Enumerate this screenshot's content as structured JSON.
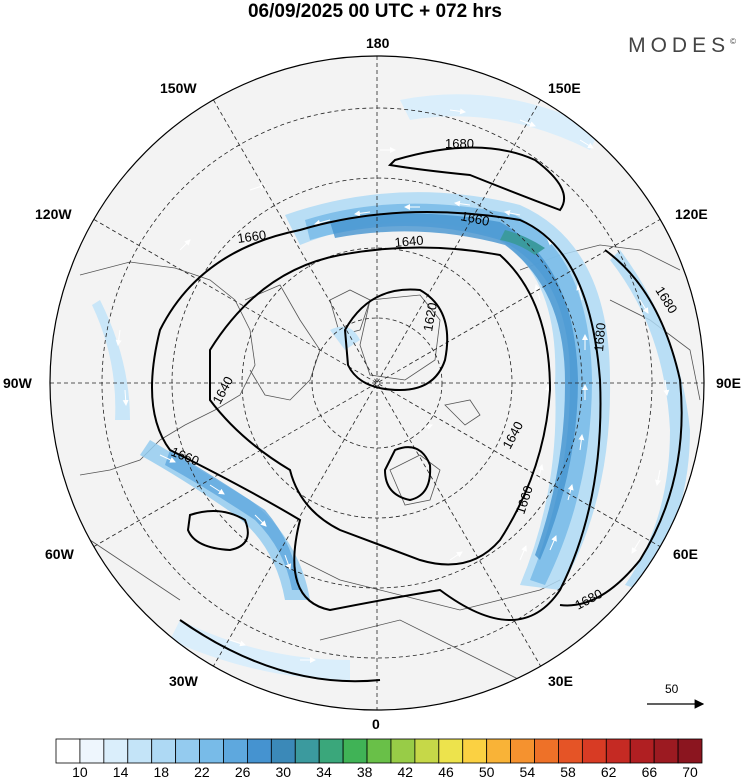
{
  "title": "06/09/2025  00 UTC  + 072 hrs",
  "brand": "MODES",
  "brand_mark": "©",
  "longitude_labels": {
    "lon_180": "180",
    "lon_150e": "150E",
    "lon_120e": "120E",
    "lon_90e": "90E",
    "lon_60e": "60E",
    "lon_30e": "30E",
    "lon_0": "0",
    "lon_30w": "30W",
    "lon_60w": "60W",
    "lon_90w": "90W",
    "lon_120w": "120W",
    "lon_150w": "150W"
  },
  "contour_labels": [
    "1680",
    "1660",
    "1640",
    "1620",
    "1640",
    "1660",
    "1680",
    "1680",
    "1680",
    "1660",
    "1640",
    "1660"
  ],
  "wind_scale": {
    "label": "50"
  },
  "colorbar": {
    "labels": [
      "10",
      "14",
      "18",
      "22",
      "26",
      "30",
      "34",
      "38",
      "42",
      "46",
      "50",
      "54",
      "58",
      "62",
      "66",
      "70"
    ],
    "colors": [
      "#ffffff",
      "#eef6fd",
      "#daeefb",
      "#c4e4f8",
      "#aed9f4",
      "#94cbef",
      "#78bbe8",
      "#5ea8de",
      "#4593d0",
      "#3b89b8",
      "#3b9a9e",
      "#3aa77b",
      "#40b356",
      "#69c048",
      "#98cc47",
      "#c6d848",
      "#ede34c",
      "#fbd142",
      "#f9b337",
      "#f5922f",
      "#ee7128",
      "#e55426",
      "#d83b24",
      "#c52a23",
      "#b01f22",
      "#9c1a21",
      "#8b151f"
    ]
  }
}
